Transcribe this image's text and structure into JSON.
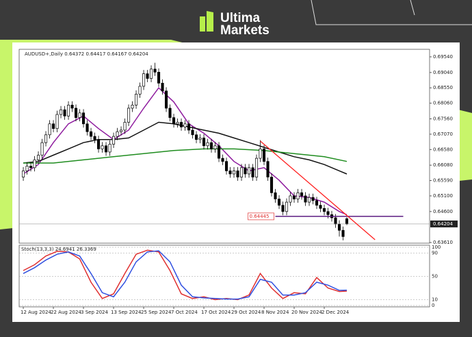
{
  "brand": {
    "line1": "Ultima",
    "line2": "Markets"
  },
  "chart_data": [
    {
      "type": "candlestick",
      "title": "AUDUSD+,Daily  0.64372 0.64417 0.64167 0.64204",
      "categories": [
        "12 Aug 2024",
        null,
        null,
        null,
        null,
        null,
        null,
        null,
        "22 Aug 2024",
        null,
        null,
        null,
        null,
        null,
        null,
        null,
        "3 Sep 2024",
        null,
        null,
        null,
        null,
        null,
        null,
        null,
        "13 Sep 2024",
        null,
        null,
        null,
        null,
        null,
        null,
        null,
        "25 Sep 2024",
        null,
        null,
        null,
        null,
        null,
        null,
        null,
        "7 Oct 2024",
        null,
        null,
        null,
        null,
        null,
        null,
        null,
        "17 Oct 2024",
        null,
        null,
        null,
        null,
        null,
        null,
        null,
        "29 Oct 2024",
        null,
        null,
        null,
        null,
        null,
        null,
        null,
        "8 Nov 2024",
        null,
        null,
        null,
        null,
        null,
        null,
        null,
        "20 Nov 2024",
        null,
        null,
        null,
        null,
        null,
        null,
        null,
        "2 Dec 2024",
        null,
        null,
        null,
        null,
        null,
        null
      ],
      "open": [
        0.657,
        0.659,
        0.6605,
        0.66,
        0.6625,
        0.664,
        0.668,
        0.6705,
        0.674,
        0.6725,
        0.677,
        0.6785,
        0.6765,
        0.68,
        0.679,
        0.676,
        0.6775,
        0.674,
        0.6715,
        0.67,
        0.669,
        0.666,
        0.667,
        0.665,
        0.6675,
        0.67,
        0.6715,
        0.672,
        0.6745,
        0.679,
        0.68,
        0.6835,
        0.686,
        0.69,
        0.6885,
        0.6915,
        0.6905,
        0.687,
        0.6845,
        0.679,
        0.676,
        0.674,
        0.6745,
        0.673,
        0.674,
        0.672,
        0.6705,
        0.669,
        0.6695,
        0.667,
        0.668,
        0.666,
        0.667,
        0.663,
        0.662,
        0.659,
        0.658,
        0.659,
        0.657,
        0.66,
        0.658,
        0.66,
        0.657,
        0.663,
        0.666,
        0.662,
        0.657,
        0.652,
        0.65,
        0.648,
        0.646,
        0.649,
        0.651,
        0.65,
        0.652,
        0.651,
        0.649,
        0.6505,
        0.6495,
        0.648,
        0.647,
        0.646,
        0.645,
        0.644,
        0.642,
        0.64,
        0.64372
      ],
      "high": [
        0.6602,
        0.6617,
        0.6617,
        0.6637,
        0.6652,
        0.6692,
        0.6717,
        0.6752,
        0.6752,
        0.6782,
        0.6797,
        0.6797,
        0.6812,
        0.6812,
        0.6802,
        0.6787,
        0.6787,
        0.6752,
        0.6727,
        0.6712,
        0.6702,
        0.6682,
        0.6682,
        0.6687,
        0.6712,
        0.6727,
        0.6732,
        0.6757,
        0.6802,
        0.6812,
        0.6847,
        0.6872,
        0.6912,
        0.6912,
        0.6927,
        0.6935,
        0.6917,
        0.6882,
        0.6857,
        0.6802,
        0.6772,
        0.6757,
        0.6757,
        0.6752,
        0.6752,
        0.6732,
        0.6717,
        0.6707,
        0.6707,
        0.6692,
        0.6692,
        0.6682,
        0.6682,
        0.6642,
        0.6632,
        0.6602,
        0.6602,
        0.6602,
        0.6612,
        0.6612,
        0.6612,
        0.6612,
        0.6642,
        0.6688,
        0.6672,
        0.6632,
        0.6582,
        0.6532,
        0.6512,
        0.6492,
        0.6502,
        0.6522,
        0.6522,
        0.6532,
        0.6532,
        0.6522,
        0.6517,
        0.6517,
        0.6507,
        0.6492,
        0.6482,
        0.6472,
        0.6462,
        0.6452,
        0.6432,
        0.6412,
        0.64417
      ],
      "low": [
        0.6558,
        0.6578,
        0.6588,
        0.6588,
        0.6613,
        0.6628,
        0.6668,
        0.6693,
        0.6713,
        0.6713,
        0.6758,
        0.6753,
        0.6753,
        0.6778,
        0.6748,
        0.6748,
        0.6728,
        0.6703,
        0.6688,
        0.6678,
        0.6648,
        0.6648,
        0.6638,
        0.6638,
        0.6663,
        0.6688,
        0.6703,
        0.6708,
        0.6733,
        0.6778,
        0.6788,
        0.6823,
        0.6848,
        0.6873,
        0.6873,
        0.6893,
        0.6858,
        0.6833,
        0.6778,
        0.6748,
        0.6728,
        0.6728,
        0.6718,
        0.6718,
        0.6708,
        0.6693,
        0.6678,
        0.6678,
        0.6658,
        0.6658,
        0.6648,
        0.6648,
        0.6618,
        0.6608,
        0.6578,
        0.6568,
        0.6568,
        0.6558,
        0.6558,
        0.6568,
        0.6568,
        0.6558,
        0.6558,
        0.6618,
        0.6608,
        0.6558,
        0.6508,
        0.6488,
        0.6468,
        0.6448,
        0.6448,
        0.6478,
        0.6488,
        0.6488,
        0.6498,
        0.6478,
        0.6478,
        0.6483,
        0.6468,
        0.6458,
        0.6448,
        0.6438,
        0.6428,
        0.6408,
        0.638,
        0.6368,
        0.64167
      ],
      "close": [
        0.659,
        0.6605,
        0.66,
        0.6625,
        0.664,
        0.668,
        0.6705,
        0.674,
        0.6725,
        0.677,
        0.6785,
        0.6765,
        0.68,
        0.679,
        0.676,
        0.6775,
        0.674,
        0.6715,
        0.67,
        0.669,
        0.666,
        0.667,
        0.665,
        0.6675,
        0.67,
        0.6715,
        0.672,
        0.6745,
        0.679,
        0.68,
        0.6835,
        0.686,
        0.69,
        0.6885,
        0.6915,
        0.6905,
        0.687,
        0.6845,
        0.679,
        0.676,
        0.674,
        0.6745,
        0.673,
        0.674,
        0.672,
        0.6705,
        0.669,
        0.6695,
        0.667,
        0.668,
        0.666,
        0.667,
        0.663,
        0.662,
        0.659,
        0.658,
        0.659,
        0.657,
        0.66,
        0.658,
        0.66,
        0.657,
        0.663,
        0.666,
        0.662,
        0.657,
        0.652,
        0.65,
        0.648,
        0.646,
        0.649,
        0.651,
        0.65,
        0.652,
        0.651,
        0.649,
        0.6505,
        0.6495,
        0.648,
        0.647,
        0.646,
        0.645,
        0.644,
        0.642,
        0.64,
        0.638,
        0.64204
      ],
      "series": [
        {
          "color": "#8e1b9e",
          "x": [
            0,
            4,
            8,
            12,
            16,
            20,
            24,
            28,
            32,
            36,
            40,
            44,
            48,
            52,
            56,
            60,
            64,
            68,
            72,
            76,
            80,
            84,
            86
          ],
          "values": [
            0.658,
            0.661,
            0.668,
            0.674,
            0.6765,
            0.6725,
            0.669,
            0.672,
            0.679,
            0.6855,
            0.681,
            0.674,
            0.671,
            0.667,
            0.662,
            0.659,
            0.66,
            0.656,
            0.651,
            0.6505,
            0.649,
            0.646,
            0.645
          ]
        },
        {
          "color": "#111111",
          "x": [
            0,
            4,
            8,
            12,
            16,
            20,
            24,
            28,
            32,
            36,
            40,
            44,
            48,
            52,
            56,
            60,
            64,
            68,
            72,
            76,
            80,
            84,
            86
          ],
          "values": [
            0.6615,
            0.662,
            0.664,
            0.666,
            0.668,
            0.669,
            0.669,
            0.6695,
            0.672,
            0.6745,
            0.674,
            0.673,
            0.672,
            0.671,
            0.6695,
            0.668,
            0.6665,
            0.665,
            0.6635,
            0.6625,
            0.661,
            0.659,
            0.658
          ]
        },
        {
          "color": "#1e8c1e",
          "x": [
            0,
            8,
            16,
            24,
            32,
            40,
            48,
            56,
            64,
            72,
            80,
            86
          ],
          "values": [
            0.6615,
            0.6615,
            0.6625,
            0.6635,
            0.6645,
            0.6655,
            0.666,
            0.666,
            0.6655,
            0.6645,
            0.6635,
            0.662
          ]
        }
      ],
      "hline": {
        "value": 0.64445,
        "x": [
          67,
          101
        ],
        "color": "#5a1a80"
      },
      "trendline": {
        "x": [
          63,
          93.5
        ],
        "y": [
          0.6685,
          0.637
        ],
        "color": "#ff2020"
      },
      "xlim": [
        -1.1,
        108
      ],
      "ylim": [
        0.6359,
        0.6978
      ],
      "yticks": [
        {
          "value": 0.6954,
          "label": "0.69540"
        },
        {
          "value": 0.6904,
          "label": "0.69040"
        },
        {
          "value": 0.6855,
          "label": "0.68550"
        },
        {
          "value": 0.6806,
          "label": "0.68060"
        },
        {
          "value": 0.6756,
          "label": "0.67560"
        },
        {
          "value": 0.6707,
          "label": "0.67070"
        },
        {
          "value": 0.6658,
          "label": "0.66580"
        },
        {
          "value": 0.6608,
          "label": "0.66080"
        },
        {
          "value": 0.6559,
          "label": "0.65590"
        },
        {
          "value": 0.651,
          "label": "0.65100"
        },
        {
          "value": 0.646,
          "label": "0.64600"
        },
        {
          "value": 0.6361,
          "label": "0.63610"
        }
      ]
    },
    {
      "type": "line",
      "title": "Stoch(13,3,3) 24.6941 26.3369",
      "series": [
        {
          "color": "#e03030",
          "x": [
            0,
            3,
            6,
            9,
            12,
            15,
            18,
            21,
            24,
            27,
            30,
            33,
            36,
            39,
            42,
            45,
            48,
            51,
            54,
            57,
            60,
            63,
            66,
            69,
            72,
            75,
            78,
            81,
            84,
            86
          ],
          "values": [
            60,
            70,
            85,
            93,
            92,
            80,
            40,
            12,
            20,
            55,
            88,
            95,
            92,
            60,
            20,
            12,
            15,
            10,
            12,
            10,
            18,
            55,
            30,
            12,
            22,
            20,
            48,
            30,
            24,
            24.6941
          ]
        },
        {
          "color": "#3050e0",
          "x": [
            0,
            3,
            6,
            9,
            12,
            15,
            18,
            21,
            24,
            27,
            30,
            33,
            36,
            39,
            42,
            45,
            48,
            51,
            54,
            57,
            60,
            63,
            66,
            69,
            72,
            75,
            78,
            81,
            84,
            86
          ],
          "values": [
            55,
            65,
            78,
            88,
            92,
            85,
            55,
            22,
            15,
            40,
            75,
            92,
            94,
            75,
            35,
            15,
            13,
            12,
            11,
            11,
            15,
            45,
            40,
            18,
            18,
            22,
            40,
            35,
            26,
            26.3369
          ]
        }
      ],
      "xlim": [
        -1.1,
        108
      ],
      "ylim": [
        0,
        100
      ],
      "yticks": [
        100,
        90,
        50,
        10,
        0
      ]
    }
  ]
}
